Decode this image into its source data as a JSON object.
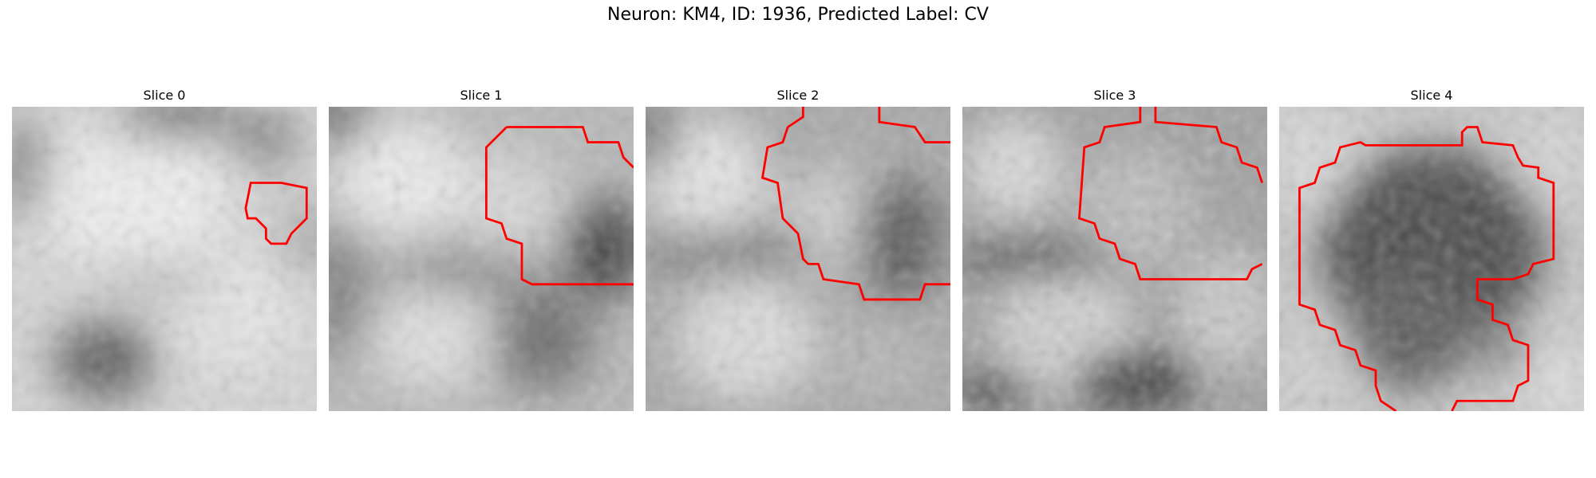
{
  "title": "Neuron: KM4, ID: 1936, Predicted Label: CV",
  "contour_color": "#ff0000",
  "panels": [
    {
      "title": "Slice 0"
    },
    {
      "title": "Slice 1"
    },
    {
      "title": "Slice 2"
    },
    {
      "title": "Slice 3"
    },
    {
      "title": "Slice 4"
    }
  ]
}
